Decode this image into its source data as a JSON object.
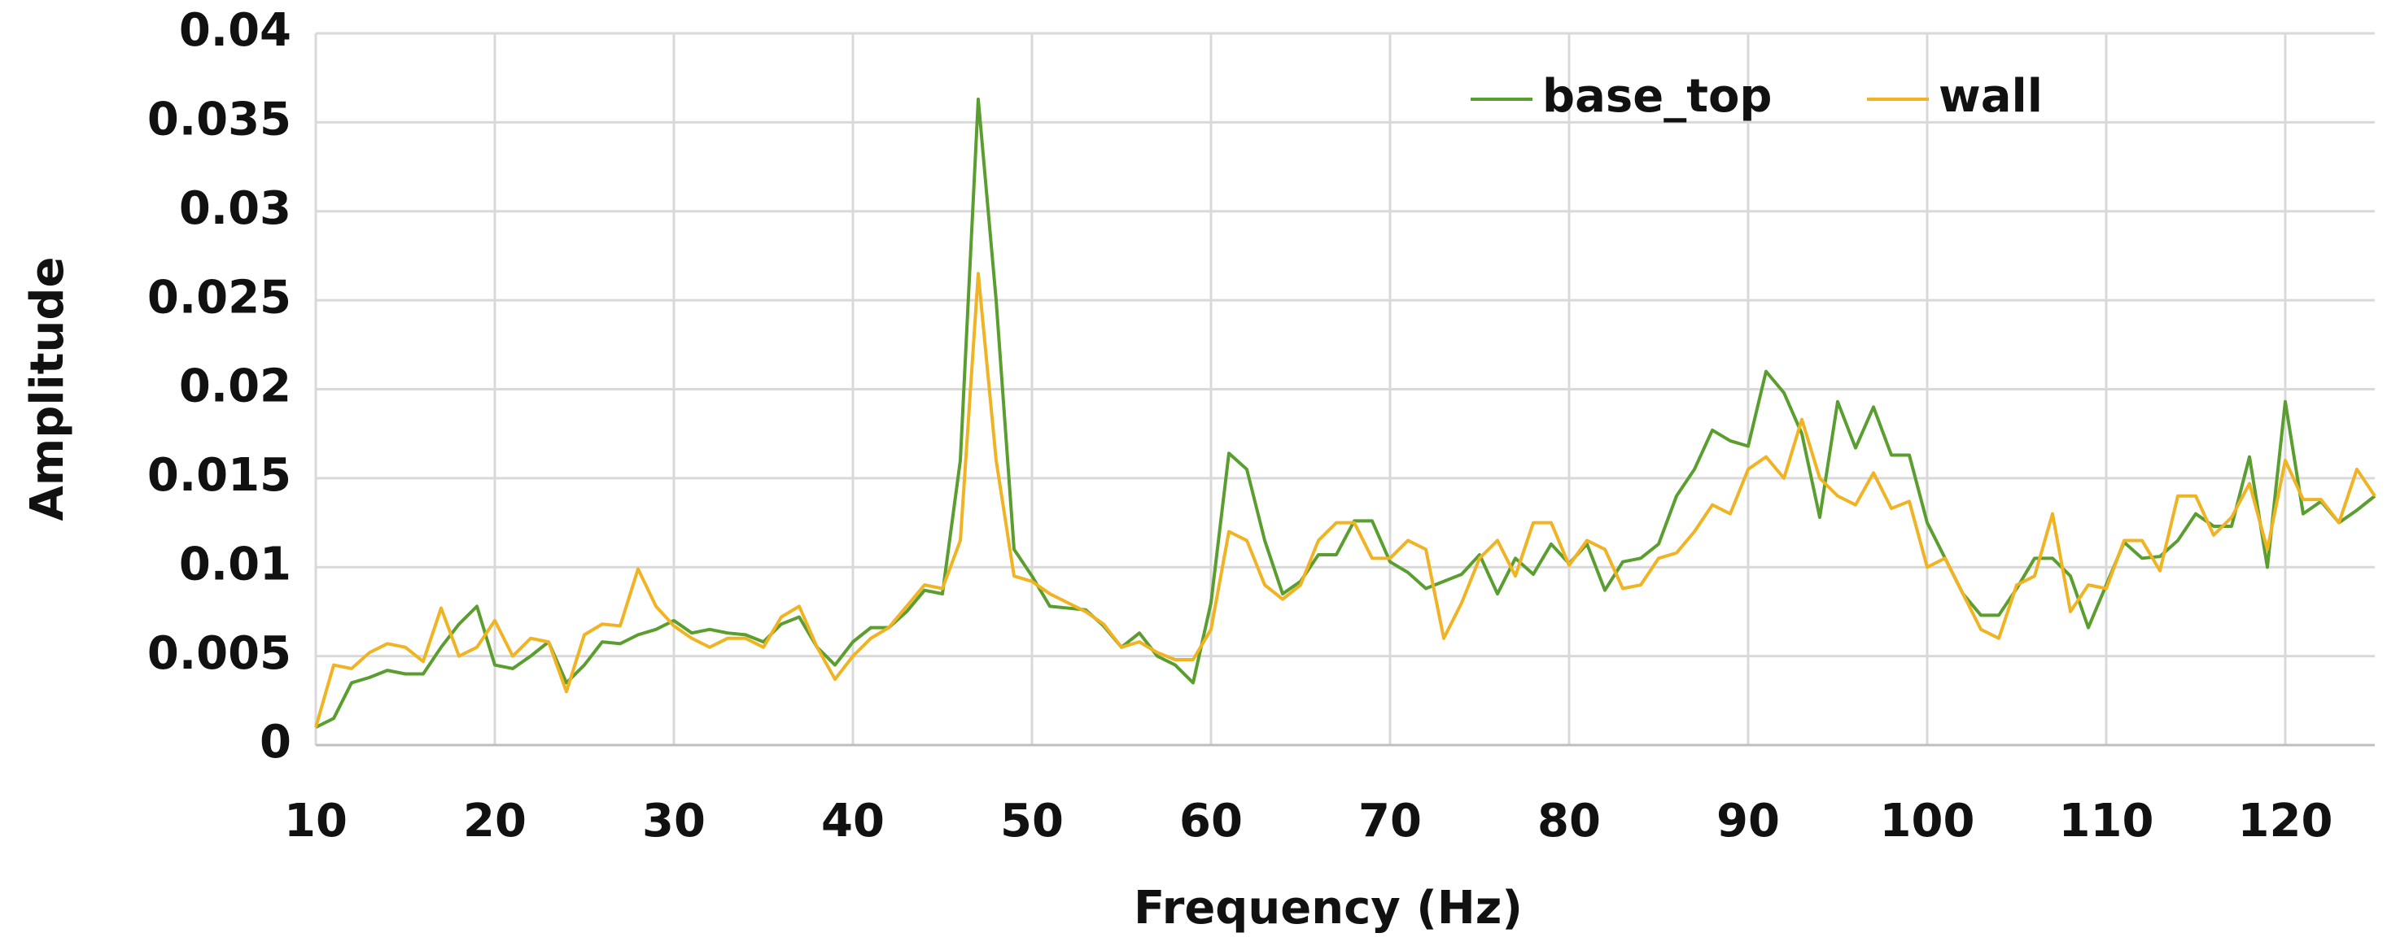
{
  "chart_data": {
    "type": "line",
    "xlabel": "Frequency (Hz)",
    "ylabel": "Amplitude",
    "x": [
      10,
      11,
      12,
      13,
      14,
      15,
      16,
      17,
      18,
      19,
      20,
      21,
      22,
      23,
      24,
      25,
      26,
      27,
      28,
      29,
      30,
      31,
      32,
      33,
      34,
      35,
      36,
      37,
      38,
      39,
      40,
      41,
      42,
      43,
      44,
      45,
      46,
      47,
      48,
      49,
      50,
      51,
      52,
      53,
      54,
      55,
      56,
      57,
      58,
      59,
      60,
      61,
      62,
      63,
      64,
      65,
      66,
      67,
      68,
      69,
      70,
      71,
      72,
      73,
      74,
      75,
      76,
      77,
      78,
      79,
      80,
      81,
      82,
      83,
      84,
      85,
      86,
      87,
      88,
      89,
      90,
      91,
      92,
      93,
      94,
      95,
      96,
      97,
      98,
      99,
      100,
      101,
      102,
      103,
      104,
      105,
      106,
      107,
      108,
      109,
      110,
      111,
      112,
      113,
      114,
      115,
      116,
      117,
      118,
      119,
      120,
      121,
      122,
      123,
      124,
      125
    ],
    "series": [
      {
        "name": "base_top",
        "color": "#5a9e2f",
        "values": [
          0.001,
          0.0015,
          0.0035,
          0.0038,
          0.0042,
          0.004,
          0.004,
          0.0055,
          0.0068,
          0.0078,
          0.0045,
          0.0043,
          0.005,
          0.0058,
          0.0035,
          0.0045,
          0.0058,
          0.0057,
          0.0062,
          0.0065,
          0.007,
          0.0063,
          0.0065,
          0.0063,
          0.0062,
          0.0058,
          0.0068,
          0.0072,
          0.0055,
          0.0045,
          0.0058,
          0.0066,
          0.0066,
          0.0075,
          0.0087,
          0.0085,
          0.016,
          0.0363,
          0.025,
          0.011,
          0.0095,
          0.0078,
          0.0077,
          0.0076,
          0.0067,
          0.0055,
          0.0063,
          0.005,
          0.0045,
          0.0035,
          0.008,
          0.0164,
          0.0155,
          0.0115,
          0.0085,
          0.0092,
          0.0107,
          0.0107,
          0.0126,
          0.0126,
          0.0103,
          0.0097,
          0.0088,
          0.0092,
          0.0096,
          0.0107,
          0.0085,
          0.0105,
          0.0096,
          0.0113,
          0.0102,
          0.0113,
          0.0087,
          0.0103,
          0.0105,
          0.0113,
          0.014,
          0.0155,
          0.0177,
          0.0171,
          0.0168,
          0.021,
          0.0198,
          0.0175,
          0.0128,
          0.0193,
          0.0167,
          0.019,
          0.0163,
          0.0163,
          0.0125,
          0.0105,
          0.0085,
          0.0073,
          0.0073,
          0.0088,
          0.0105,
          0.0105,
          0.0095,
          0.0066,
          0.009,
          0.0114,
          0.0105,
          0.0106,
          0.0115,
          0.013,
          0.0123,
          0.0123,
          0.0162,
          0.01,
          0.0193,
          0.013,
          0.0137,
          0.0125,
          0.0132,
          0.014
        ]
      },
      {
        "name": "wall",
        "color": "#f0b323",
        "values": [
          0.001,
          0.0045,
          0.0043,
          0.0052,
          0.0057,
          0.0055,
          0.0047,
          0.0077,
          0.005,
          0.0055,
          0.007,
          0.005,
          0.006,
          0.0058,
          0.003,
          0.0062,
          0.0068,
          0.0067,
          0.0099,
          0.0078,
          0.0067,
          0.006,
          0.0055,
          0.006,
          0.006,
          0.0055,
          0.0072,
          0.0078,
          0.0055,
          0.0037,
          0.005,
          0.006,
          0.0066,
          0.0078,
          0.009,
          0.0088,
          0.0115,
          0.0265,
          0.016,
          0.0095,
          0.0092,
          0.0085,
          0.008,
          0.0075,
          0.0068,
          0.0055,
          0.0058,
          0.0052,
          0.0048,
          0.0048,
          0.0065,
          0.012,
          0.0115,
          0.009,
          0.0082,
          0.009,
          0.0115,
          0.0125,
          0.0125,
          0.0105,
          0.0105,
          0.0115,
          0.011,
          0.006,
          0.008,
          0.0105,
          0.0115,
          0.0095,
          0.0125,
          0.0125,
          0.0101,
          0.0115,
          0.011,
          0.0088,
          0.009,
          0.0105,
          0.0108,
          0.012,
          0.0135,
          0.013,
          0.0155,
          0.0162,
          0.015,
          0.0183,
          0.015,
          0.014,
          0.0135,
          0.0153,
          0.0133,
          0.0137,
          0.01,
          0.0105,
          0.0085,
          0.0065,
          0.006,
          0.009,
          0.0095,
          0.013,
          0.0075,
          0.009,
          0.0088,
          0.0115,
          0.0115,
          0.0098,
          0.014,
          0.014,
          0.0118,
          0.0128,
          0.0147,
          0.011,
          0.016,
          0.0138,
          0.0138,
          0.0125,
          0.0155,
          0.014
        ]
      }
    ],
    "xlim": [
      10,
      125
    ],
    "xticks": [
      10,
      20,
      30,
      40,
      50,
      60,
      70,
      80,
      90,
      100,
      110,
      120
    ],
    "ylim": [
      0,
      0.04
    ],
    "yticks": [
      0,
      0.005,
      0.01,
      0.015,
      0.02,
      0.025,
      0.03,
      0.035,
      0.04
    ],
    "grid": true,
    "legend": "upper right"
  }
}
